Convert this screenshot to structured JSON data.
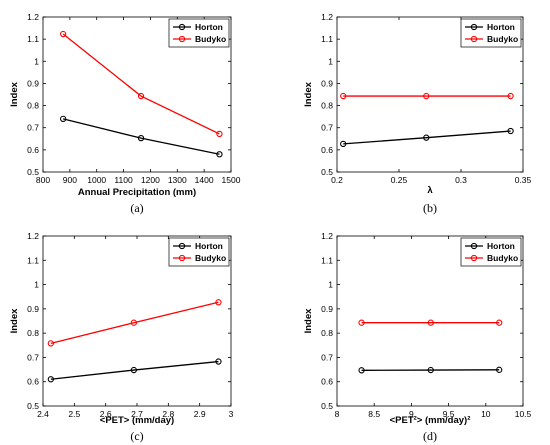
{
  "chart_data": [
    {
      "panel": "(a)",
      "type": "line",
      "title": "",
      "xlabel": "Annual Precipitation (mm)",
      "ylabel": "Index",
      "xlim": [
        800,
        1500
      ],
      "ylim": [
        0.5,
        1.2
      ],
      "xticks": [
        800,
        900,
        1000,
        1100,
        1200,
        1300,
        1400,
        1500
      ],
      "yticks": [
        0.5,
        0.6,
        0.7,
        0.8,
        0.9,
        1.0,
        1.1,
        1.2
      ],
      "legend_position": "top-right",
      "series": [
        {
          "name": "Horton",
          "color": "#000000",
          "x": [
            875,
            1165,
            1457
          ],
          "y": [
            0.74,
            0.653,
            0.58
          ]
        },
        {
          "name": "Budyko",
          "color": "#ff0000",
          "x": [
            875,
            1165,
            1457
          ],
          "y": [
            1.123,
            0.843,
            0.672
          ]
        }
      ]
    },
    {
      "panel": "(b)",
      "type": "line",
      "title": "",
      "xlabel": "λ",
      "ylabel": "Index",
      "xlim": [
        0.2,
        0.35
      ],
      "ylim": [
        0.5,
        1.2
      ],
      "xticks": [
        0.2,
        0.25,
        0.3,
        0.35
      ],
      "yticks": [
        0.5,
        0.6,
        0.7,
        0.8,
        0.9,
        1.0,
        1.1,
        1.2
      ],
      "legend_position": "top-right",
      "series": [
        {
          "name": "Horton",
          "color": "#000000",
          "x": [
            0.205,
            0.272,
            0.34
          ],
          "y": [
            0.627,
            0.655,
            0.685
          ]
        },
        {
          "name": "Budyko",
          "color": "#ff0000",
          "x": [
            0.205,
            0.272,
            0.34
          ],
          "y": [
            0.843,
            0.843,
            0.843
          ]
        }
      ]
    },
    {
      "panel": "(c)",
      "type": "line",
      "title": "",
      "xlabel": "<PET> (mm/day)",
      "ylabel": "Index",
      "xlim": [
        2.4,
        3.0
      ],
      "ylim": [
        0.5,
        1.2
      ],
      "xticks": [
        2.4,
        2.5,
        2.6,
        2.7,
        2.8,
        2.9,
        3.0
      ],
      "yticks": [
        0.5,
        0.6,
        0.7,
        0.8,
        0.9,
        1.0,
        1.1,
        1.2
      ],
      "legend_position": "top-right",
      "series": [
        {
          "name": "Horton",
          "color": "#000000",
          "x": [
            2.425,
            2.69,
            2.96
          ],
          "y": [
            0.61,
            0.648,
            0.683
          ]
        },
        {
          "name": "Budyko",
          "color": "#ff0000",
          "x": [
            2.425,
            2.69,
            2.96
          ],
          "y": [
            0.758,
            0.843,
            0.927
          ]
        }
      ]
    },
    {
      "panel": "(d)",
      "type": "line",
      "title": "",
      "xlabel": "<PET²> (mm/day)²",
      "ylabel": "Index",
      "xlim": [
        8,
        10.5
      ],
      "ylim": [
        0.5,
        1.2
      ],
      "xticks": [
        8,
        8.5,
        9,
        9.5,
        10,
        10.5
      ],
      "yticks": [
        0.5,
        0.6,
        0.7,
        0.8,
        0.9,
        1.0,
        1.1,
        1.2
      ],
      "legend_position": "top-right",
      "series": [
        {
          "name": "Horton",
          "color": "#000000",
          "x": [
            8.33,
            9.26,
            10.18
          ],
          "y": [
            0.647,
            0.648,
            0.649
          ]
        },
        {
          "name": "Budyko",
          "color": "#ff0000",
          "x": [
            8.33,
            9.26,
            10.18
          ],
          "y": [
            0.843,
            0.843,
            0.843
          ]
        }
      ]
    }
  ]
}
